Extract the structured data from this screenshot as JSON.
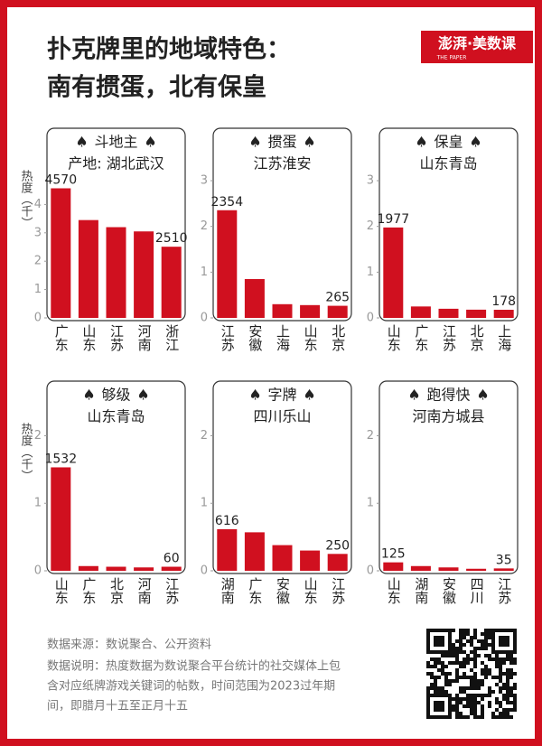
{
  "header": {
    "title_line1": "扑克牌里的地域特色：",
    "title_line2": "南有掼蛋，北有保皇",
    "logo": "澎湃·美数课",
    "logo_sub": "THE PAPER"
  },
  "chart_data": [
    {
      "type": "bar",
      "title": "斗地主",
      "subtitle": "产地: 湖北武汉",
      "ylabel": "热度（千）",
      "categories": [
        "广东",
        "山东",
        "江苏",
        "河南",
        "浙江"
      ],
      "values": [
        4.57,
        3.45,
        3.2,
        3.05,
        2.51
      ],
      "value_labels": [
        "4570",
        null,
        null,
        null,
        "2510"
      ],
      "color": "#d0101f",
      "ylim": [
        0,
        5
      ],
      "yticks": [
        0,
        1,
        2,
        3,
        4
      ]
    },
    {
      "type": "bar",
      "title": "掼蛋",
      "subtitle": "江苏淮安",
      "categories": [
        "江苏",
        "安徽",
        "上海",
        "山东",
        "北京"
      ],
      "values": [
        2.354,
        0.85,
        0.3,
        0.28,
        0.265
      ],
      "value_labels": [
        "2354",
        null,
        null,
        null,
        "265"
      ],
      "color": "#d0101f",
      "ylim": [
        0,
        3.1
      ],
      "yticks": [
        0,
        1,
        2,
        3
      ]
    },
    {
      "type": "bar",
      "title": "保皇",
      "subtitle": "山东青岛",
      "categories": [
        "山东",
        "广东",
        "江苏",
        "北京",
        "上海"
      ],
      "values": [
        1.977,
        0.25,
        0.2,
        0.18,
        0.178
      ],
      "value_labels": [
        "1977",
        null,
        null,
        null,
        "178"
      ],
      "color": "#d0101f",
      "ylim": [
        0,
        3.1
      ],
      "yticks": [
        0,
        1,
        2,
        3
      ]
    },
    {
      "type": "bar",
      "title": "够级",
      "subtitle": "山东青岛",
      "ylabel": "热度（千）",
      "categories": [
        "山东",
        "广东",
        "北京",
        "河南",
        "江苏"
      ],
      "values": [
        1.532,
        0.07,
        0.06,
        0.05,
        0.06
      ],
      "value_labels": [
        "1532",
        null,
        null,
        null,
        "60"
      ],
      "color": "#d0101f",
      "ylim": [
        0,
        2.1
      ],
      "yticks": [
        0,
        1,
        2
      ]
    },
    {
      "type": "bar",
      "title": "字牌",
      "subtitle": "四川乐山",
      "categories": [
        "湖南",
        "广东",
        "安徽",
        "山东",
        "江苏"
      ],
      "values": [
        0.616,
        0.57,
        0.38,
        0.3,
        0.25
      ],
      "value_labels": [
        "616",
        null,
        null,
        null,
        "250"
      ],
      "color": "#d0101f",
      "ylim": [
        0,
        2.1
      ],
      "yticks": [
        0,
        1,
        2
      ]
    },
    {
      "type": "bar",
      "title": "跑得快",
      "subtitle": "河南方城县",
      "categories": [
        "山东",
        "湖南",
        "安徽",
        "四川",
        "江苏"
      ],
      "values": [
        0.125,
        0.07,
        0.05,
        0.03,
        0.035
      ],
      "value_labels": [
        "125",
        null,
        null,
        null,
        "35"
      ],
      "color": "#d0101f",
      "ylim": [
        0,
        2.1
      ],
      "yticks": [
        0,
        1,
        2
      ]
    }
  ],
  "footer": {
    "source": "数据来源：数说聚合、公开资料",
    "note_line1": "数据说明：热度数据为数说聚合平台统计的社交媒体上包",
    "note_line2": "含对应纸牌游戏关键词的帖数，时间范围为2023过年期",
    "note_line3": "间，即腊月十五至正月十五"
  }
}
